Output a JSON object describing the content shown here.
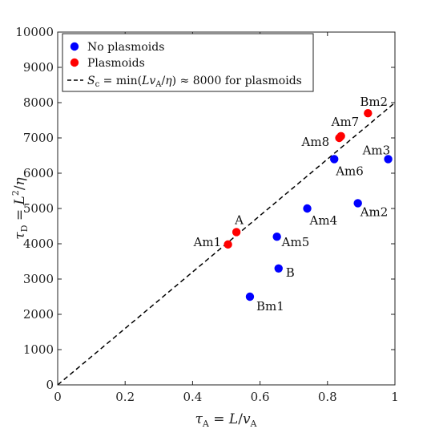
{
  "chart_data": {
    "type": "scatter",
    "xlabel": "τA = L/vA",
    "ylabel": "τD = L²/η",
    "xlim": [
      0,
      1
    ],
    "ylim": [
      0,
      10000
    ],
    "xticks": [
      0,
      0.2,
      0.4,
      0.6,
      0.8,
      1
    ],
    "yticks": [
      0,
      1000,
      2000,
      3000,
      4000,
      5000,
      6000,
      7000,
      8000,
      9000,
      10000
    ],
    "xtick_labels": [
      "0",
      "0.2",
      "0.4",
      "0.6",
      "0.8",
      "1"
    ],
    "ytick_labels": [
      "0",
      "1000",
      "2000",
      "3000",
      "4000",
      "5000",
      "6000",
      "7000",
      "8000",
      "9000",
      "10000"
    ],
    "grid": false,
    "legend_position": "top-left",
    "series": [
      {
        "name": "No plasmoids",
        "color": "#0000ff",
        "points": [
          {
            "label": "Am3",
            "x": 0.98,
            "y": 6400
          },
          {
            "label": "Am6",
            "x": 0.82,
            "y": 6400
          },
          {
            "label": "Am2",
            "x": 0.89,
            "y": 5150
          },
          {
            "label": "Am4",
            "x": 0.74,
            "y": 5000
          },
          {
            "label": "Am5",
            "x": 0.65,
            "y": 4200
          },
          {
            "label": "B",
            "x": 0.655,
            "y": 3300
          },
          {
            "label": "Bm1",
            "x": 0.57,
            "y": 2500
          }
        ]
      },
      {
        "name": "Plasmoids",
        "color": "#ff0000",
        "points": [
          {
            "label": "Bm2",
            "x": 0.92,
            "y": 7700
          },
          {
            "label": "Am7",
            "x": 0.84,
            "y": 7050
          },
          {
            "label": "Am8",
            "x": 0.835,
            "y": 7000
          },
          {
            "label": "A",
            "x": 0.53,
            "y": 4330
          },
          {
            "label": "Am1",
            "x": 0.505,
            "y": 3980
          }
        ]
      }
    ],
    "reference_line": {
      "name": "Sc = min(LvA/η) ≈ 8000 for plasmoids",
      "slope": 8000,
      "style": "dashed",
      "color": "#000000"
    }
  }
}
